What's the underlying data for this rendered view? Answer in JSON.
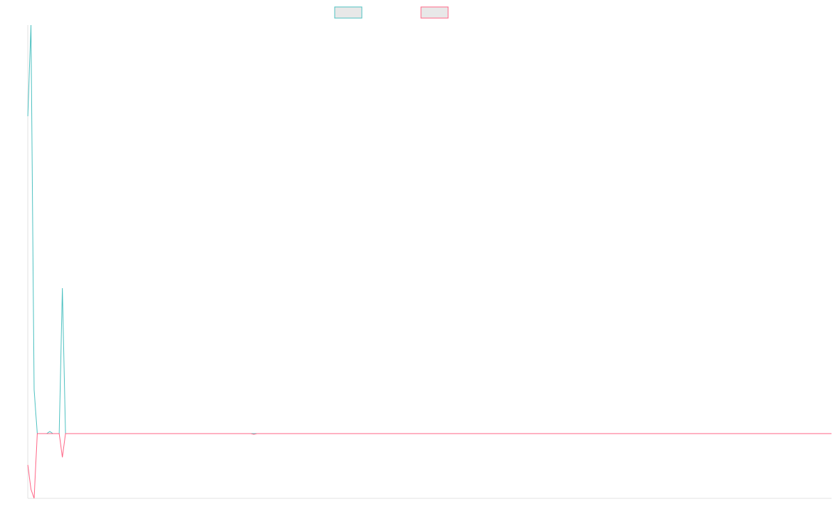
{
  "chart_data": {
    "type": "line",
    "xlim": [
      0,
      256
    ],
    "ylim": [
      -0.93,
      5.87
    ],
    "series": [
      {
        "color": "#4bc0c0",
        "x": [
          0,
          1,
          2,
          3,
          6,
          7,
          8,
          10,
          11,
          12,
          256
        ],
        "values": [
          4.56,
          5.87,
          0.63,
          0,
          0,
          0.03,
          0,
          0,
          2.09,
          0,
          0
        ]
      },
      {
        "color": "#ff6384",
        "x": [
          0,
          1,
          2,
          3,
          10,
          11,
          12,
          71,
          72,
          73,
          256
        ],
        "values": [
          -0.45,
          -0.8,
          -0.93,
          0,
          0,
          -0.34,
          0,
          0,
          -0.01,
          0,
          0
        ]
      }
    ]
  }
}
